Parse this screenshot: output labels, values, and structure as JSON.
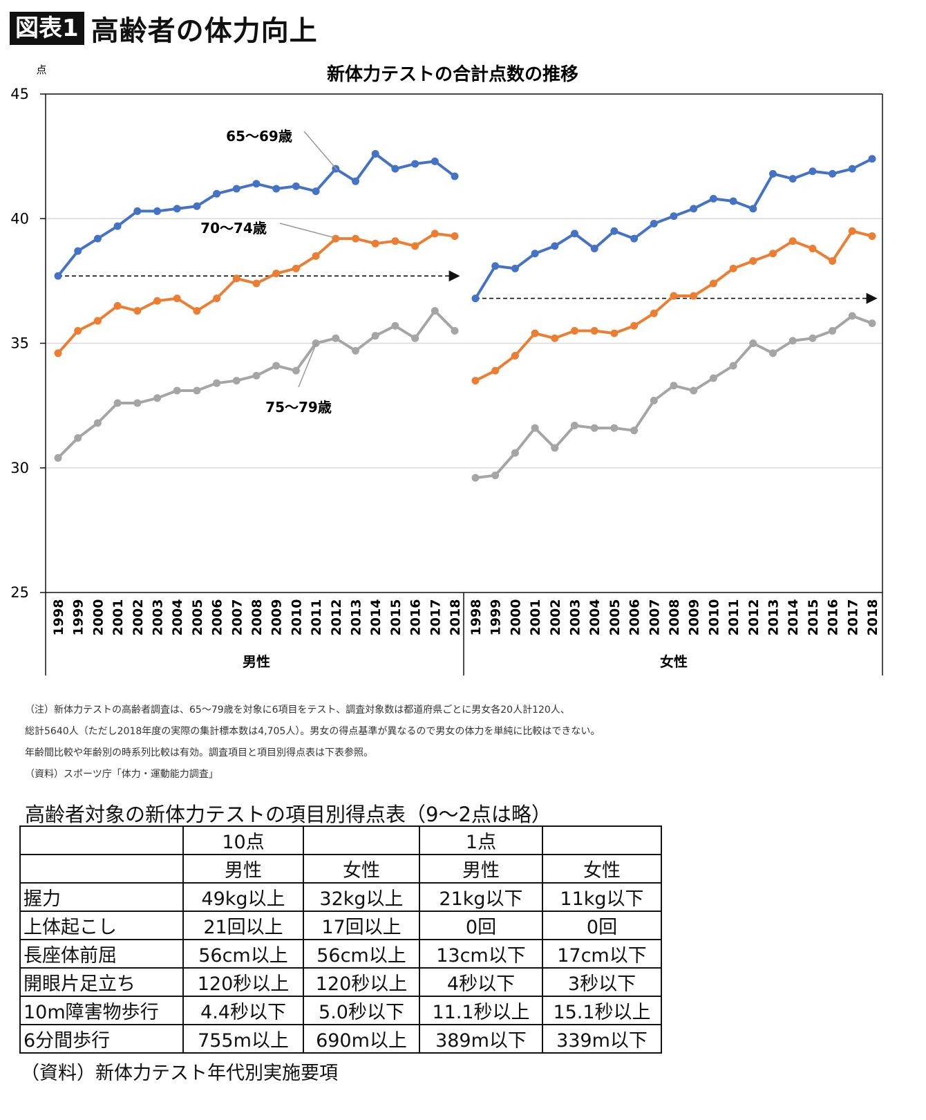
{
  "header": {
    "badge": "図表1",
    "title": "高齢者の体力向上"
  },
  "chart_data": {
    "type": "line",
    "title": "新体力テストの合計点数の推移",
    "ylabel": "点",
    "ylim": [
      25,
      45
    ],
    "yticks": [
      25,
      30,
      35,
      40,
      45
    ],
    "grid": true,
    "groups": [
      "男性",
      "女性"
    ],
    "x": [
      1998,
      1999,
      2000,
      2001,
      2002,
      2003,
      2004,
      2005,
      2006,
      2007,
      2008,
      2009,
      2010,
      2011,
      2012,
      2013,
      2014,
      2015,
      2016,
      2017,
      2018
    ],
    "colors": {
      "65〜69歳": "#4472C4",
      "70〜74歳": "#ED7D31",
      "75〜79歳": "#A5A5A5"
    },
    "series": [
      {
        "name": "65〜69歳",
        "group": "男性",
        "values": [
          37.7,
          38.7,
          39.2,
          39.7,
          40.3,
          40.3,
          40.4,
          40.5,
          41.0,
          41.2,
          41.4,
          41.2,
          41.3,
          41.1,
          42.0,
          41.5,
          42.6,
          42.0,
          42.2,
          42.3,
          41.7
        ]
      },
      {
        "name": "70〜74歳",
        "group": "男性",
        "values": [
          34.6,
          35.5,
          35.9,
          36.5,
          36.3,
          36.7,
          36.8,
          36.3,
          36.8,
          37.6,
          37.4,
          37.8,
          38.0,
          38.5,
          39.2,
          39.2,
          39.0,
          39.1,
          38.9,
          39.4,
          39.3
        ]
      },
      {
        "name": "75〜79歳",
        "group": "男性",
        "values": [
          30.4,
          31.2,
          31.8,
          32.6,
          32.6,
          32.8,
          33.1,
          33.1,
          33.4,
          33.5,
          33.7,
          34.1,
          33.9,
          35.0,
          35.2,
          34.7,
          35.3,
          35.7,
          35.2,
          36.3,
          35.5
        ]
      },
      {
        "name": "65〜69歳",
        "group": "女性",
        "values": [
          36.8,
          38.1,
          38.0,
          38.6,
          38.9,
          39.4,
          38.8,
          39.5,
          39.2,
          39.8,
          40.1,
          40.4,
          40.8,
          40.7,
          40.4,
          41.8,
          41.6,
          41.9,
          41.8,
          42.0,
          42.4
        ]
      },
      {
        "name": "70〜74歳",
        "group": "女性",
        "values": [
          33.5,
          33.9,
          34.5,
          35.4,
          35.2,
          35.5,
          35.5,
          35.4,
          35.7,
          36.2,
          36.9,
          36.9,
          37.4,
          38.0,
          38.3,
          38.6,
          39.1,
          38.8,
          38.3,
          39.5,
          39.3
        ]
      },
      {
        "name": "75〜79歳",
        "group": "女性",
        "values": [
          29.6,
          29.7,
          30.6,
          31.6,
          30.8,
          31.7,
          31.6,
          31.6,
          31.5,
          32.7,
          33.3,
          33.1,
          33.6,
          34.1,
          35.0,
          34.6,
          35.1,
          35.2,
          35.5,
          36.1,
          35.8
        ]
      }
    ],
    "reference_arrows": [
      {
        "group": "男性",
        "value": 37.7
      },
      {
        "group": "女性",
        "value": 36.8
      }
    ],
    "annotations": [
      "65〜69歳",
      "70〜74歳",
      "75〜79歳"
    ]
  },
  "notes": [
    "（注）新体力テストの高齢者調査は、65〜79歳を対象に6項目をテスト、調査対象数は都道府県ごとに男女各20人計120人、",
    "総計5640人（ただし2018年度の実際の集計標本数は4,705人）。男女の得点基準が異なるので男女の体力を単純に比較はできない。",
    "年齢間比較や年齢別の時系列比較は有効。調査項目と項目別得点表は下表参照。",
    "（資料）スポーツ庁「体力・運動能力調査」"
  ],
  "table": {
    "title": "高齢者対象の新体力テストの項目別得点表（9〜2点は略）",
    "header1": [
      "",
      "10点",
      "",
      "1点",
      ""
    ],
    "header2": [
      "",
      "男性",
      "女性",
      "男性",
      "女性"
    ],
    "rows": [
      [
        "握力",
        "49kg以上",
        "32kg以上",
        "21kg以下",
        "11kg以下"
      ],
      [
        "上体起こし",
        "21回以上",
        "17回以上",
        "0回",
        "0回"
      ],
      [
        "長座体前屈",
        "56cm以上",
        "56cm以上",
        "13cm以下",
        "17cm以下"
      ],
      [
        "開眼片足立ち",
        "120秒以上",
        "120秒以上",
        "4秒以下",
        "3秒以下"
      ],
      [
        "10m障害物歩行",
        "4.4秒以下",
        "5.0秒以下",
        "11.1秒以上",
        "15.1秒以上"
      ],
      [
        "6分間歩行",
        "755m以上",
        "690m以上",
        "389m以下",
        "339m以下"
      ]
    ],
    "source": "（資料）新体力テスト年代別実施要項"
  }
}
